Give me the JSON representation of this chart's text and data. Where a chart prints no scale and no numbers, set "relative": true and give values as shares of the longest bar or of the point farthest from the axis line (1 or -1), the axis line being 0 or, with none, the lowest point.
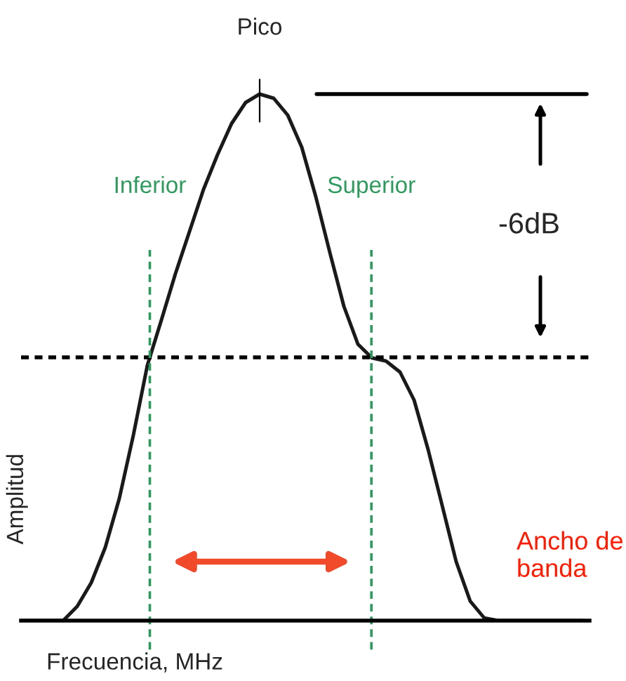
{
  "chart_data": {
    "type": "line",
    "relative": true,
    "xlabel": "Frecuencia, MHz",
    "ylabel": "Amplitud",
    "categories": [
      null,
      null,
      null,
      null,
      null,
      null,
      null,
      null,
      null,
      null,
      null,
      null,
      null,
      null,
      null,
      null,
      null,
      null,
      null,
      null,
      null,
      null,
      null,
      null,
      null,
      null,
      null,
      null,
      null,
      null,
      null,
      null,
      null,
      null,
      null,
      null,
      null,
      null,
      null,
      null,
      null
    ],
    "series": [
      {
        "color": "#1a1a1a",
        "values": [
          0,
          0,
          0,
          0,
          0.027,
          0.072,
          0.139,
          0.232,
          0.352,
          0.485,
          0.571,
          0.659,
          0.739,
          0.819,
          0.885,
          0.944,
          0.984,
          1.0,
          0.992,
          0.96,
          0.899,
          0.805,
          0.699,
          0.597,
          0.525,
          0.499,
          0.493,
          0.472,
          0.419,
          0.325,
          0.219,
          0.112,
          0.037,
          0.005,
          0,
          0,
          0,
          0,
          0,
          0,
          0
        ]
      }
    ],
    "ref_lines": [
      {
        "axis": "y",
        "value": 1,
        "color": "#000000",
        "line_style": "solid"
      },
      {
        "axis": "y",
        "value": 0.5,
        "color": "#000000",
        "line_style": "dotted"
      }
    ],
    "annotations": [
      {
        "text": "Pico",
        "y": 1
      },
      "-6dB",
      "Ancho de banda",
      "Inferior",
      "Superior"
    ],
    "marker": "none",
    "line_style": "solid"
  }
}
